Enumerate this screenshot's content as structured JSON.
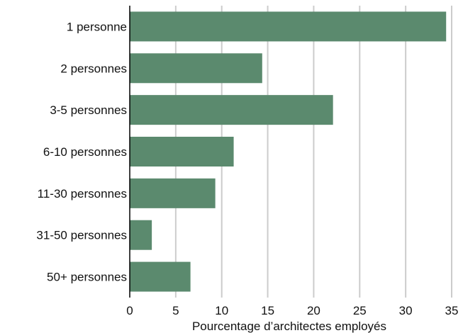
{
  "chart_data": {
    "type": "bar",
    "orientation": "horizontal",
    "categories": [
      "1 personne",
      "2 personnes",
      "3-5 personnes",
      "6-10 personnes",
      "11-30 personnes",
      "31-50 personnes",
      "50+ personnes"
    ],
    "values": [
      34.4,
      14.4,
      22.1,
      11.3,
      9.3,
      2.4,
      6.6
    ],
    "xlabel": "Pourcentage d’architectes employés",
    "ylabel": "",
    "xlim": [
      0,
      35
    ],
    "xticks": [
      "0",
      "5",
      "10",
      "15",
      "20",
      "25",
      "30",
      "35"
    ],
    "grid": "vertical",
    "bar_color": "#5b8a6e",
    "grid_color": "#cccccc"
  }
}
